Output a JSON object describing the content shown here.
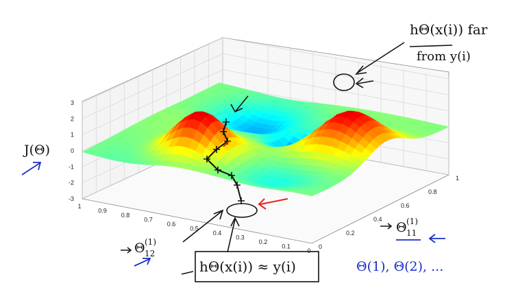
{
  "chart_data": {
    "type": "surface",
    "title": "",
    "zlabel": "J(Θ)",
    "xlabel": "Θ(1)12",
    "ylabel": "Θ(1)11",
    "zlim": [
      -3,
      3
    ],
    "xlim": [
      0,
      1
    ],
    "ylim": [
      0,
      1
    ],
    "z_ticks": [
      "3",
      "2",
      "1",
      "0",
      "-1",
      "-2",
      "-3"
    ],
    "x_ticks": [
      "1",
      "0.9",
      "0.8",
      "0.7",
      "0.6",
      "0.5",
      "0.4",
      "0.3",
      "0.2",
      "0.1",
      "0"
    ],
    "y_ticks": [
      "0",
      "0.2",
      "0.4",
      "0.6",
      "0.8",
      "1"
    ],
    "colormap": "jet",
    "gradient_descent_path": [
      {
        "x": 0.6,
        "y": 0.25,
        "z": 2.6
      },
      {
        "x": 0.58,
        "y": 0.3,
        "z": 1.9
      },
      {
        "x": 0.57,
        "y": 0.34,
        "z": 1.2
      },
      {
        "x": 0.55,
        "y": 0.38,
        "z": 0.6
      },
      {
        "x": 0.52,
        "y": 0.42,
        "z": -0.2
      },
      {
        "x": 0.48,
        "y": 0.46,
        "z": -0.9
      },
      {
        "x": 0.44,
        "y": 0.5,
        "z": -1.6
      },
      {
        "x": 0.4,
        "y": 0.54,
        "z": -2.3
      },
      {
        "x": 0.37,
        "y": 0.58,
        "z": -2.9
      }
    ]
  },
  "annotations": {
    "z_axis": "J(Θ)",
    "x_axis_main": "Θ",
    "x_axis_sup": "(1)",
    "x_axis_sub": "12",
    "y_axis_main": "Θ",
    "y_axis_sup": "(1)",
    "y_axis_sub": "11",
    "top_note_line1": "hΘ(x(i)) far",
    "top_note_line2": "from y(i)",
    "bottom_note": "hΘ(x(i)) ≈ y(i)",
    "blue_note": "Θ(1), Θ(2), ..."
  },
  "colors": {
    "surface_low": "#00008f",
    "surface_mid": "#7fff7f",
    "surface_high": "#8f0000",
    "ink_black": "#111111",
    "ink_red": "#e8241a",
    "ink_blue": "#1a2fc9"
  }
}
